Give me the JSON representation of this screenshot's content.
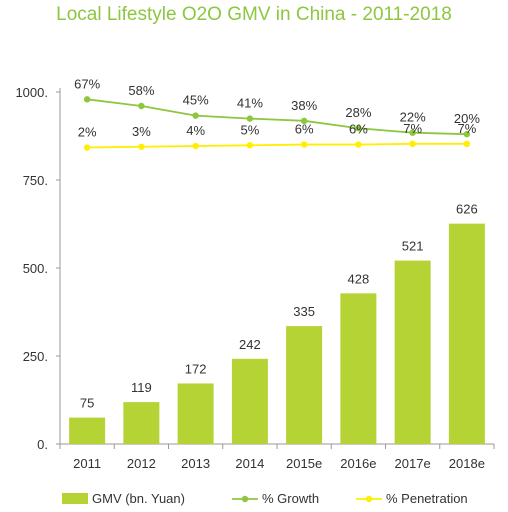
{
  "chart_data": {
    "type": "bar",
    "title": "Local Lifestyle O2O GMV in China - 2011-2018",
    "categories": [
      "2011",
      "2012",
      "2013",
      "2014",
      "2015e",
      "2016e",
      "2017e",
      "2018e"
    ],
    "ylim": [
      0,
      1000
    ],
    "yticks": [
      "0.",
      "250.",
      "500.",
      "750.",
      "1000."
    ],
    "grid": false,
    "legend_position": "bottom",
    "series": [
      {
        "name": "GMV (bn. Yuan)",
        "type": "bar",
        "color": "#b5d334",
        "values": [
          75,
          119,
          172,
          242,
          335,
          428,
          521,
          626
        ],
        "labels": [
          "75",
          "119",
          "172",
          "242",
          "335",
          "428",
          "521",
          "626"
        ]
      },
      {
        "name": "% Growth",
        "type": "line",
        "color": "#8dc63f",
        "values": [
          67,
          58,
          45,
          41,
          38,
          28,
          22,
          20
        ],
        "labels": [
          "67%",
          "58%",
          "45%",
          "41%",
          "38%",
          "28%",
          "22%",
          "20%"
        ]
      },
      {
        "name": "% Penetration",
        "type": "line",
        "color": "#ffee00",
        "values": [
          2,
          3,
          4,
          5,
          6,
          6,
          7,
          7
        ],
        "labels": [
          "2%",
          "3%",
          "4%",
          "5%",
          "6%",
          "6%",
          "7%",
          "7%"
        ]
      }
    ]
  }
}
